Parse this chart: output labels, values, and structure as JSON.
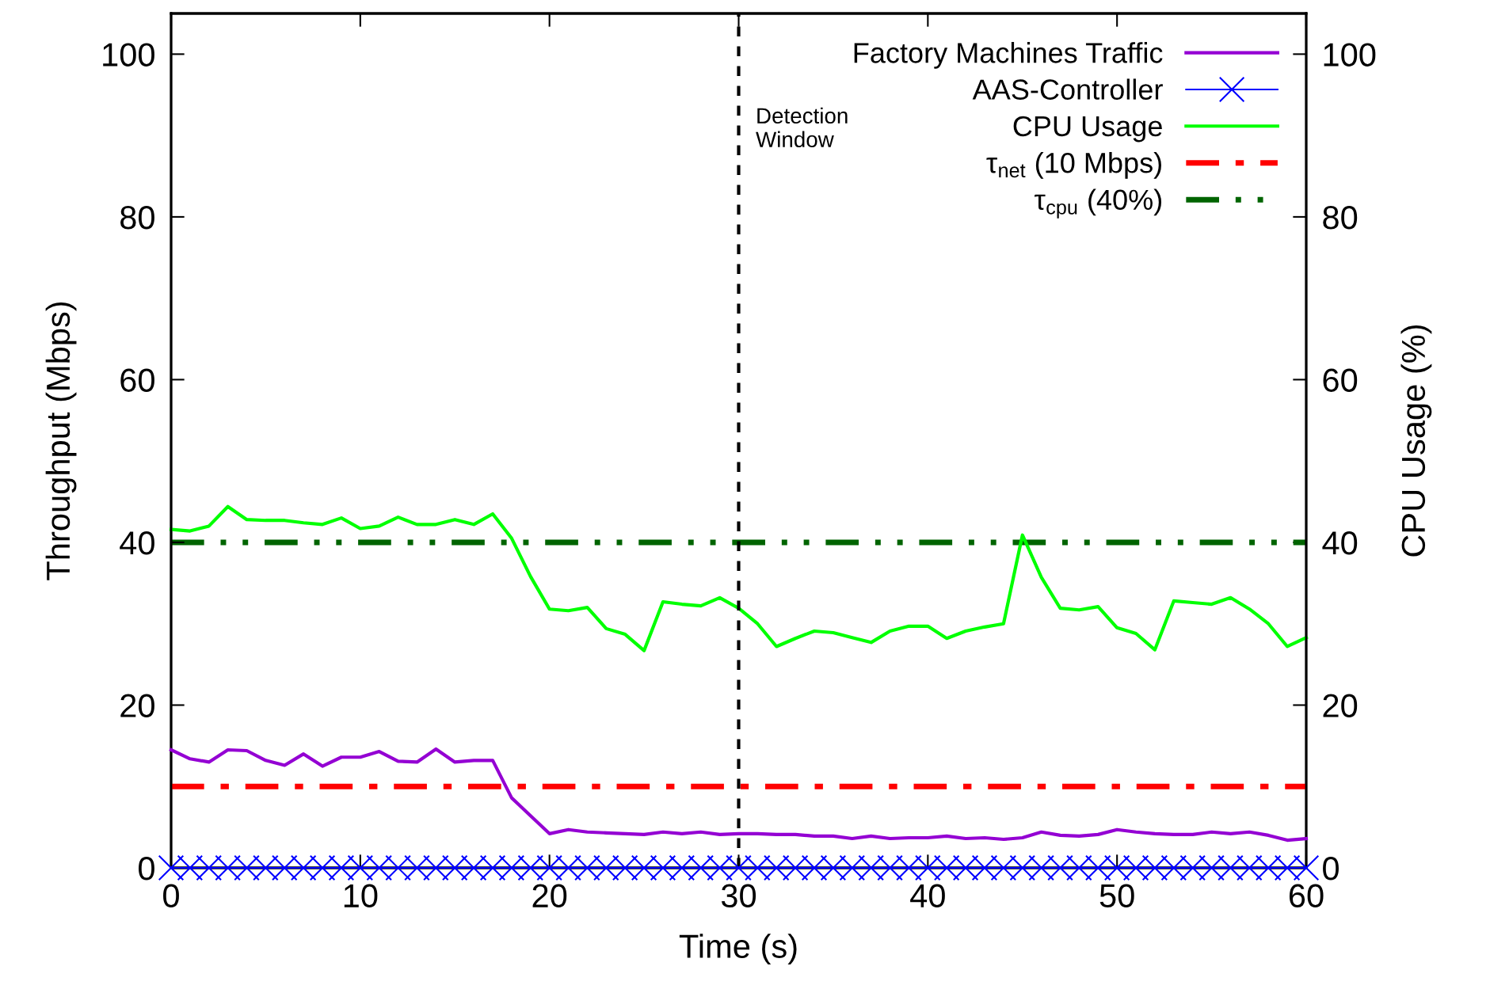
{
  "chart_data": {
    "type": "line",
    "xlabel": "Time (s)",
    "ylabel": "Throughput (Mbps)",
    "y2label": "CPU Usage (%)",
    "x": [
      0,
      1,
      2,
      3,
      4,
      5,
      6,
      7,
      8,
      9,
      10,
      11,
      12,
      13,
      14,
      15,
      16,
      17,
      18,
      19,
      20,
      21,
      22,
      23,
      24,
      25,
      26,
      27,
      28,
      29,
      30,
      31,
      32,
      33,
      34,
      35,
      36,
      37,
      38,
      39,
      40,
      41,
      42,
      43,
      44,
      45,
      46,
      47,
      48,
      49,
      50,
      51,
      52,
      53,
      54,
      55,
      56,
      57,
      58,
      59,
      60
    ],
    "series": [
      {
        "name": "Factory Machines Traffic",
        "color": "#9400d3",
        "marker": "none",
        "values": [
          14.5,
          13.4,
          13.0,
          14.5,
          14.4,
          13.2,
          12.6,
          14.0,
          12.5,
          13.6,
          13.6,
          14.3,
          13.1,
          13.0,
          14.6,
          13.0,
          13.2,
          13.2,
          8.6,
          6.4,
          4.2,
          4.7,
          4.4,
          4.3,
          4.2,
          4.1,
          4.4,
          4.2,
          4.4,
          4.1,
          4.2,
          4.2,
          4.1,
          4.1,
          3.9,
          3.9,
          3.6,
          3.9,
          3.6,
          3.7,
          3.7,
          3.9,
          3.6,
          3.7,
          3.5,
          3.7,
          4.4,
          4.0,
          3.9,
          4.1,
          4.7,
          4.4,
          4.2,
          4.1,
          4.1,
          4.4,
          4.2,
          4.4,
          4.0,
          3.4,
          3.6
        ]
      },
      {
        "name": "AAS-Controller",
        "color": "#0000ff",
        "marker": "cross",
        "values": [
          0,
          0,
          0,
          0,
          0,
          0,
          0,
          0,
          0,
          0,
          0,
          0,
          0,
          0,
          0,
          0,
          0,
          0,
          0,
          0,
          0,
          0,
          0,
          0,
          0,
          0,
          0,
          0,
          0,
          0,
          0,
          0,
          0,
          0,
          0,
          0,
          0,
          0,
          0,
          0,
          0,
          0,
          0,
          0,
          0,
          0,
          0,
          0,
          0,
          0,
          0,
          0,
          0,
          0,
          0,
          0,
          0,
          0,
          0,
          0,
          0
        ]
      },
      {
        "name": "CPU Usage",
        "color": "#00ff00",
        "marker": "none",
        "axis": "y2",
        "values": [
          41.6,
          41.4,
          42.0,
          44.4,
          42.8,
          42.7,
          42.7,
          42.4,
          42.2,
          43.0,
          41.7,
          42.0,
          43.1,
          42.2,
          42.2,
          42.8,
          42.2,
          43.5,
          40.5,
          35.8,
          31.8,
          31.6,
          32.0,
          29.4,
          28.7,
          26.7,
          32.7,
          32.4,
          32.2,
          33.2,
          31.9,
          30.0,
          27.2,
          28.2,
          29.1,
          28.9,
          28.3,
          27.7,
          29.1,
          29.7,
          29.7,
          28.2,
          29.1,
          29.6,
          30.0,
          40.9,
          35.7,
          31.9,
          31.7,
          32.1,
          29.5,
          28.8,
          26.8,
          32.8,
          32.6,
          32.4,
          33.2,
          31.8,
          30.0,
          27.2,
          28.3
        ]
      }
    ],
    "ref_lines": [
      {
        "axis": "y",
        "value": 10,
        "label": "τ$_{net}$ (10 Mbps)",
        "color": "#ff0000",
        "line_style": "dashdot"
      },
      {
        "axis": "y2",
        "value": 40,
        "label": "τ$_{cpu}$ (40%)",
        "color": "#006400",
        "line_style": "dashdotdot"
      },
      {
        "axis": "x",
        "value": 30,
        "label": "Detection\nWindow",
        "color": "#000000",
        "line_style": "dashed"
      }
    ],
    "xlim": [
      0,
      60
    ],
    "xticks": [
      0,
      10,
      20,
      30,
      40,
      50,
      60
    ],
    "ylim": [
      0,
      105
    ],
    "yticks": [
      0,
      20,
      40,
      60,
      80,
      100
    ],
    "y2lim": [
      0,
      105
    ],
    "y2ticks": [
      0,
      20,
      40,
      60,
      80,
      100
    ],
    "grid": false,
    "legend": "top right"
  }
}
